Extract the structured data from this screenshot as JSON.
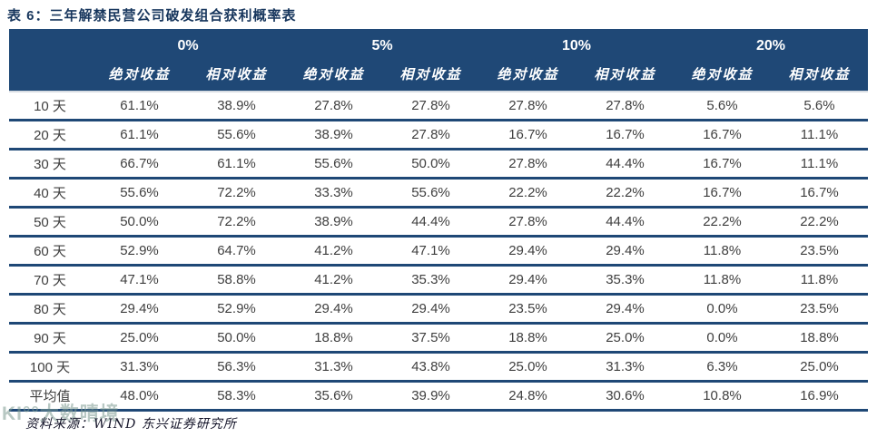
{
  "title": "表 6：三年解禁民营公司破发组合获利概率表",
  "source": "资料来源：WIND 东兴证券研究所",
  "watermark": "KI°°大数晴境",
  "colors": {
    "header_bg": "#1F4876",
    "row_separator": "#1F4876",
    "title_color": "#17365D",
    "data_text": "#3f3f3f"
  },
  "chart_data": {
    "type": "table",
    "title": "表 6：三年解禁民营公司破发组合获利概率表",
    "column_groups": [
      "0%",
      "5%",
      "10%",
      "20%"
    ],
    "sub_headers": [
      "绝对收益",
      "相对收益",
      "绝对收益",
      "相对收益",
      "绝对收益",
      "相对收益",
      "绝对收益",
      "相对收益"
    ],
    "corner_label": "",
    "rows": [
      {
        "label": "10 天",
        "values": [
          "61.1%",
          "38.9%",
          "27.8%",
          "27.8%",
          "27.8%",
          "27.8%",
          "5.6%",
          "5.6%"
        ]
      },
      {
        "label": "20 天",
        "values": [
          "61.1%",
          "55.6%",
          "38.9%",
          "27.8%",
          "16.7%",
          "16.7%",
          "16.7%",
          "11.1%"
        ]
      },
      {
        "label": "30 天",
        "values": [
          "66.7%",
          "61.1%",
          "55.6%",
          "50.0%",
          "27.8%",
          "44.4%",
          "16.7%",
          "11.1%"
        ]
      },
      {
        "label": "40 天",
        "values": [
          "55.6%",
          "72.2%",
          "33.3%",
          "55.6%",
          "22.2%",
          "22.2%",
          "16.7%",
          "16.7%"
        ]
      },
      {
        "label": "50 天",
        "values": [
          "50.0%",
          "72.2%",
          "38.9%",
          "44.4%",
          "27.8%",
          "44.4%",
          "22.2%",
          "22.2%"
        ]
      },
      {
        "label": "60 天",
        "values": [
          "52.9%",
          "64.7%",
          "41.2%",
          "47.1%",
          "29.4%",
          "29.4%",
          "11.8%",
          "23.5%"
        ]
      },
      {
        "label": "70 天",
        "values": [
          "47.1%",
          "58.8%",
          "41.2%",
          "35.3%",
          "29.4%",
          "35.3%",
          "11.8%",
          "11.8%"
        ]
      },
      {
        "label": "80 天",
        "values": [
          "29.4%",
          "52.9%",
          "29.4%",
          "29.4%",
          "23.5%",
          "29.4%",
          "0.0%",
          "23.5%"
        ]
      },
      {
        "label": "90 天",
        "values": [
          "25.0%",
          "50.0%",
          "18.8%",
          "37.5%",
          "18.8%",
          "25.0%",
          "0.0%",
          "18.8%"
        ]
      },
      {
        "label": "100 天",
        "values": [
          "31.3%",
          "56.3%",
          "31.3%",
          "43.8%",
          "25.0%",
          "31.3%",
          "6.3%",
          "25.0%"
        ]
      },
      {
        "label": "平均值",
        "values": [
          "48.0%",
          "58.3%",
          "35.6%",
          "39.9%",
          "24.8%",
          "30.6%",
          "10.8%",
          "16.9%"
        ]
      }
    ],
    "layout": {
      "grid": "horizontal-separators-only",
      "header_rows": 2,
      "source_note_position": "bottom-left"
    }
  }
}
